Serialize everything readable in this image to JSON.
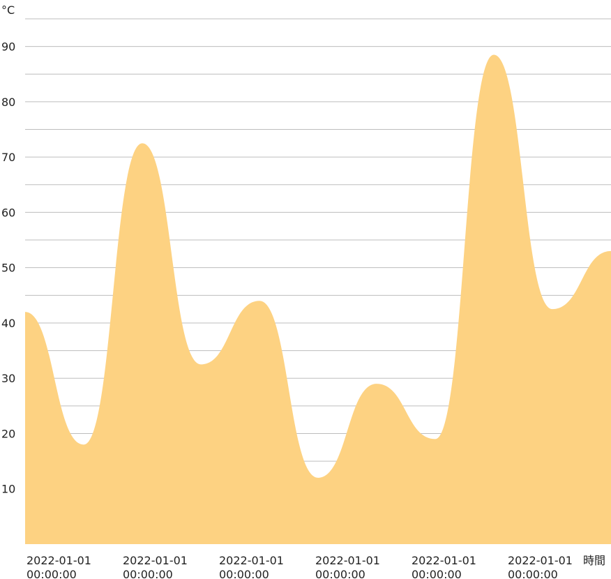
{
  "chart_data": {
    "type": "area",
    "y_unit_label": "°C",
    "x_unit_label": "時間",
    "ylim": [
      0,
      95
    ],
    "y_ticks": [
      10,
      20,
      30,
      40,
      50,
      60,
      70,
      80,
      90
    ],
    "grid": true,
    "x_tick_labels": [
      [
        "2022-01-01",
        "00:00:00"
      ],
      [
        "2022-01-01",
        "00:00:00"
      ],
      [
        "2022-01-01",
        "00:00:00"
      ],
      [
        "2022-01-01",
        "00:00:00"
      ],
      [
        "2022-01-01",
        "00:00:00"
      ],
      [
        "2022-01-01",
        "00:00:00"
      ]
    ],
    "series": [
      {
        "color": "#fdd282",
        "values": [
          42,
          18,
          72.5,
          32.5,
          44,
          12,
          29,
          19,
          88.5,
          42.5,
          53
        ]
      }
    ]
  }
}
